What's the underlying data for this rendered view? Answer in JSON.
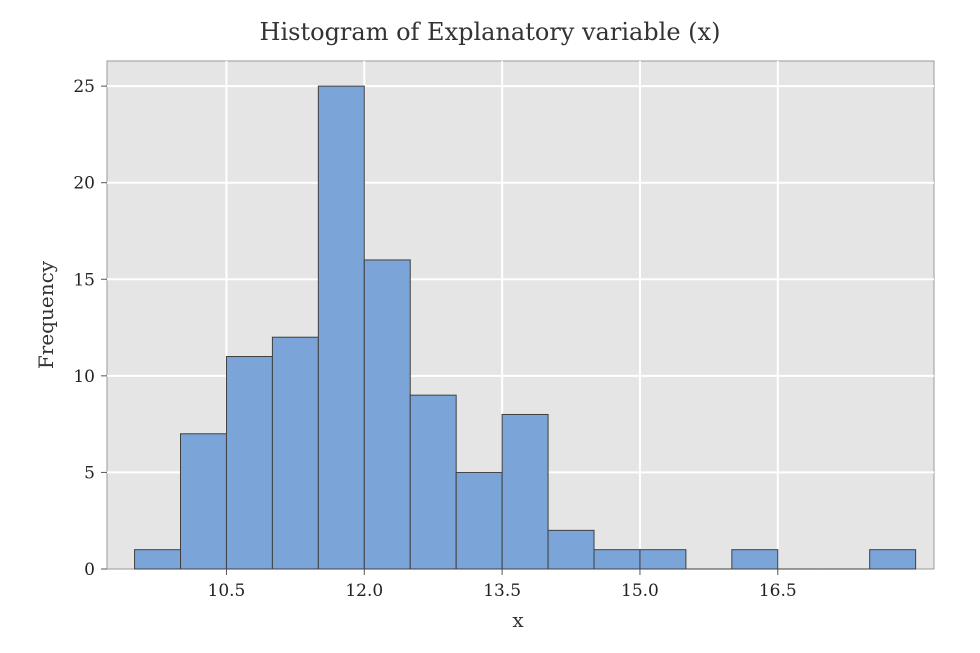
{
  "chart_data": {
    "type": "bar",
    "title": "Histogram of Explanatory variable (x)",
    "xlabel": "x",
    "ylabel": "Frequency",
    "bins": [
      {
        "x0": 9.5,
        "x1": 10.0,
        "count": 1
      },
      {
        "x0": 10.0,
        "x1": 10.5,
        "count": 7
      },
      {
        "x0": 10.5,
        "x1": 11.0,
        "count": 11
      },
      {
        "x0": 11.0,
        "x1": 11.5,
        "count": 12
      },
      {
        "x0": 11.5,
        "x1": 12.0,
        "count": 25
      },
      {
        "x0": 12.0,
        "x1": 12.5,
        "count": 16
      },
      {
        "x0": 12.5,
        "x1": 13.0,
        "count": 9
      },
      {
        "x0": 13.0,
        "x1": 13.5,
        "count": 5
      },
      {
        "x0": 13.5,
        "x1": 14.0,
        "count": 8
      },
      {
        "x0": 14.0,
        "x1": 14.5,
        "count": 2
      },
      {
        "x0": 14.5,
        "x1": 15.0,
        "count": 1
      },
      {
        "x0": 15.0,
        "x1": 15.5,
        "count": 1
      },
      {
        "x0": 15.5,
        "x1": 16.0,
        "count": 0
      },
      {
        "x0": 16.0,
        "x1": 16.5,
        "count": 1
      },
      {
        "x0": 16.5,
        "x1": 17.0,
        "count": 0
      },
      {
        "x0": 17.0,
        "x1": 17.5,
        "count": 0
      },
      {
        "x0": 17.5,
        "x1": 18.0,
        "count": 1
      }
    ],
    "xlim": [
      9.2,
      18.2
    ],
    "ylim": [
      0,
      26.3
    ],
    "xticks": [
      10.5,
      12.0,
      13.5,
      15.0,
      16.5
    ],
    "xtick_labels": [
      "10.5",
      "12.0",
      "13.5",
      "15.0",
      "16.5"
    ],
    "yticks": [
      0,
      5,
      10,
      15,
      20,
      25
    ],
    "ytick_labels": [
      "0",
      "5",
      "10",
      "15",
      "20",
      "25"
    ],
    "grid": true,
    "colors": {
      "bar_fill": "#7ba5d9",
      "bar_edge": "#3f3f3f",
      "panel_bg": "#e5e5e5",
      "grid": "#ffffff"
    }
  }
}
